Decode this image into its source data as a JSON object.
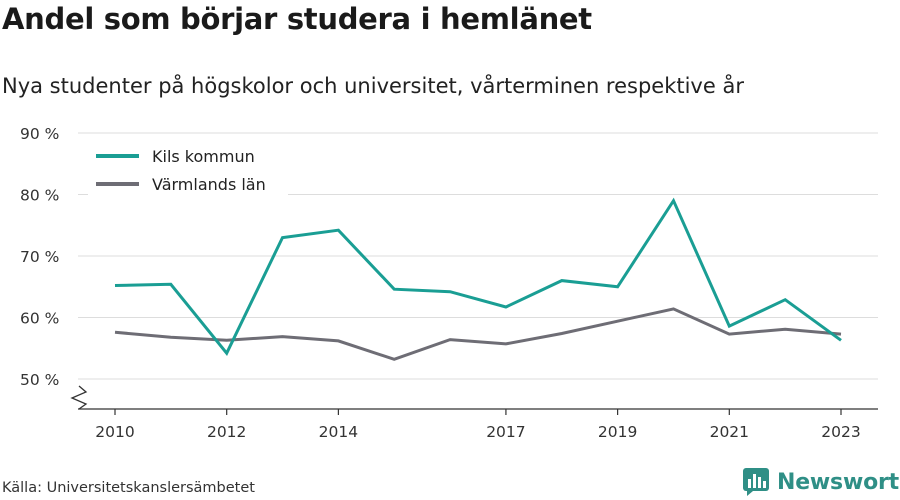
{
  "header": {
    "title": "Andel som börjar studera i hemlänet",
    "subtitle": "Nya studenter på högskolor och universitet, vårterminen respektive år"
  },
  "footer": {
    "source": "Källa: Universitetskanslersämbetet",
    "brand": "Newsworthy"
  },
  "colors": {
    "kils": "#1a9e94",
    "varmland": "#6e6d75",
    "grid": "#dddddd",
    "axis": "#333333",
    "brand": "#2f8f86"
  },
  "chart_data": {
    "type": "line",
    "title": "Andel som börjar studera i hemlänet",
    "subtitle": "Nya studenter på högskolor och universitet, vårterminen respektive år",
    "xlabel": "",
    "ylabel": "",
    "x": [
      2010,
      2011,
      2012,
      2013,
      2014,
      2015,
      2016,
      2017,
      2018,
      2019,
      2020,
      2021,
      2022,
      2023
    ],
    "x_ticks": [
      "2010",
      "2012",
      "2014",
      "2017",
      "2019",
      "2021",
      "2023"
    ],
    "y_ticks": [
      "50 %",
      "60 %",
      "70 %",
      "80 %",
      "90 %"
    ],
    "ylim": [
      45,
      90
    ],
    "series": [
      {
        "name": "Kils kommun",
        "values": [
          65.2,
          65.4,
          54.2,
          73.0,
          74.2,
          64.6,
          64.2,
          61.7,
          66.0,
          65.0,
          79.0,
          58.6,
          62.9,
          56.3
        ]
      },
      {
        "name": "Värmlands län",
        "values": [
          57.6,
          56.8,
          56.3,
          56.9,
          56.2,
          53.2,
          56.4,
          55.7,
          57.4,
          59.4,
          61.4,
          57.3,
          58.1,
          57.3
        ]
      }
    ],
    "grid": true,
    "axis_break": true,
    "legend_position": "top-left"
  }
}
